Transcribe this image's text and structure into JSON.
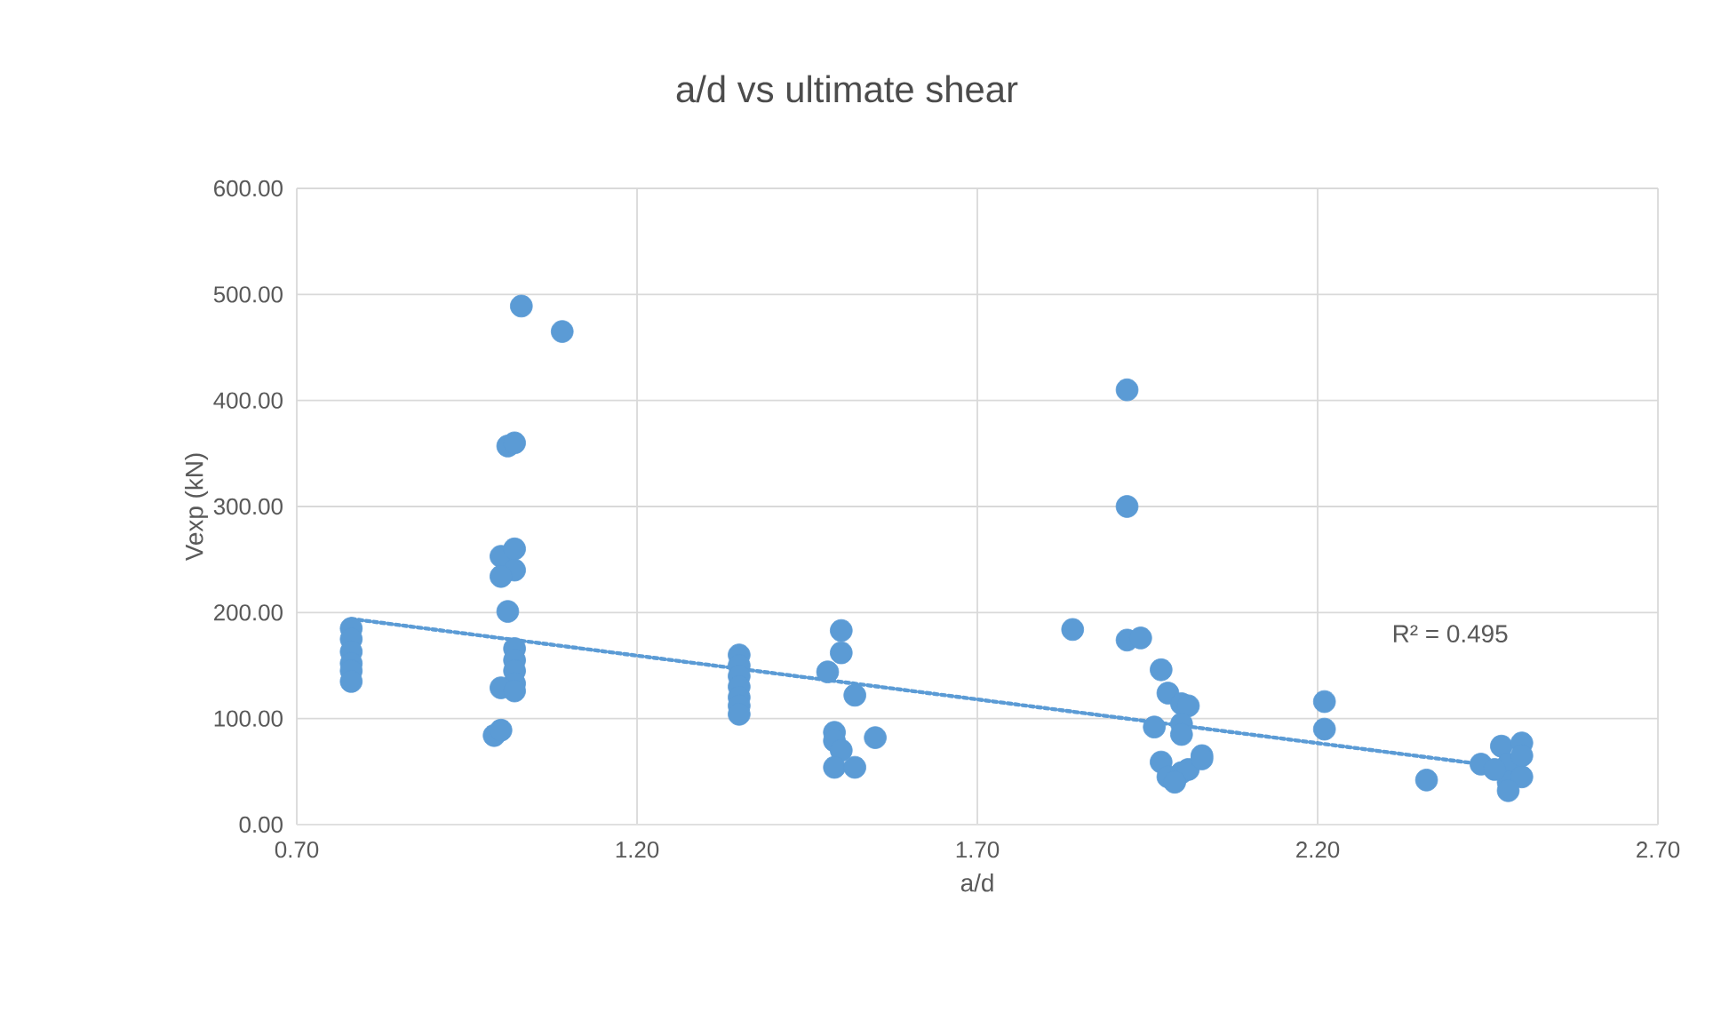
{
  "chart_data": {
    "type": "scatter",
    "title": "a/d vs ultimate shear",
    "xlabel": "a/d",
    "ylabel": "Vexp (kN)",
    "xlim": [
      0.7,
      2.7
    ],
    "ylim": [
      0,
      600
    ],
    "xticks": [
      {
        "value": 0.7,
        "label": "0.70"
      },
      {
        "value": 1.2,
        "label": "1.20"
      },
      {
        "value": 1.7,
        "label": "1.70"
      },
      {
        "value": 2.2,
        "label": "2.20"
      },
      {
        "value": 2.7,
        "label": "2.70"
      }
    ],
    "yticks": [
      {
        "value": 0,
        "label": "0.00"
      },
      {
        "value": 100,
        "label": "100.00"
      },
      {
        "value": 200,
        "label": "200.00"
      },
      {
        "value": 300,
        "label": "300.00"
      },
      {
        "value": 400,
        "label": "400.00"
      },
      {
        "value": 500,
        "label": "500.00"
      },
      {
        "value": 600,
        "label": "600.00"
      }
    ],
    "grid": true,
    "annotations": [
      "R² = 0.495"
    ],
    "series": [
      {
        "color": "#5b9bd5",
        "marker": "circle",
        "x": [
          0.78,
          0.78,
          0.78,
          0.78,
          0.78,
          0.78,
          0.99,
          1.0,
          1.03,
          1.09,
          1.01,
          1.02,
          1.0,
          1.02,
          1.02,
          1.0,
          1.01,
          1.02,
          1.02,
          1.02,
          1.02,
          1.0,
          1.02,
          1.35,
          1.35,
          1.35,
          1.35,
          1.35,
          1.35,
          1.35,
          1.48,
          1.5,
          1.5,
          1.52,
          1.49,
          1.49,
          1.5,
          1.49,
          1.52,
          1.55,
          1.84,
          1.92,
          1.92,
          1.92,
          1.94,
          1.97,
          1.98,
          1.96,
          2.0,
          2.01,
          2.0,
          2.0,
          1.97,
          1.98,
          2.0,
          2.03,
          2.01,
          1.99,
          2.03,
          2.21,
          2.21,
          2.36,
          2.44,
          2.47,
          2.5,
          2.48,
          2.48,
          2.5,
          2.48,
          2.5,
          2.46
        ],
        "values": [
          185,
          175,
          163,
          152,
          145,
          135,
          84,
          89,
          489,
          465,
          357,
          360,
          253,
          260,
          240,
          234,
          201,
          166,
          155,
          145,
          133,
          129,
          126,
          160,
          150,
          140,
          130,
          120,
          112,
          104,
          144,
          183,
          162,
          122,
          87,
          79,
          70,
          54,
          54,
          82,
          184,
          410,
          300,
          174,
          176,
          146,
          124,
          92,
          114,
          112,
          95,
          85,
          59,
          45,
          49,
          65,
          52,
          40,
          62,
          116,
          90,
          42,
          57,
          74,
          77,
          57,
          40,
          45,
          32,
          65,
          52
        ]
      },
      {
        "type": "line",
        "color": "#5b9bd5",
        "marker": "none",
        "line_style": "dotted",
        "x": [
          0.78,
          2.44
        ],
        "values": [
          194,
          57
        ]
      }
    ]
  }
}
